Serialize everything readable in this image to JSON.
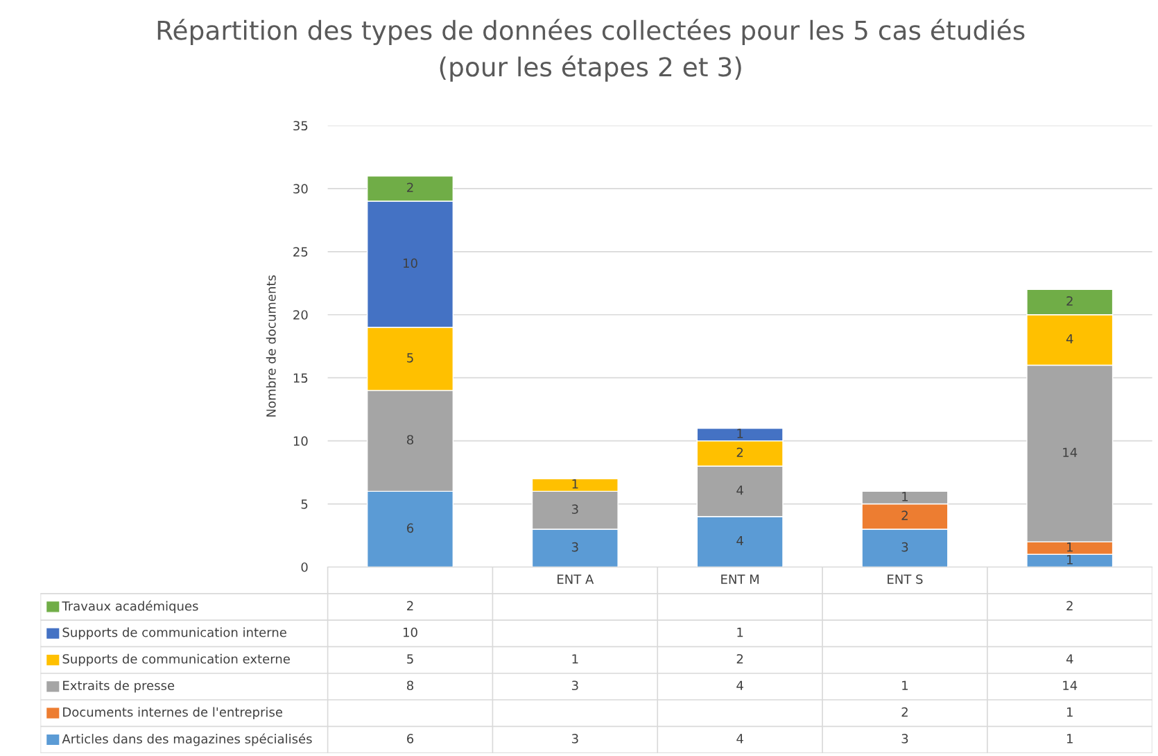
{
  "chart_data": [
    {
      "type": "bar",
      "stacked": true,
      "title": "Répartition des types de données collectées pour les 5 cas étudiés\n(pour les étapes 2 et 3)",
      "ylabel": "Nombre de documents",
      "categories": [
        null,
        "ENT A",
        "ENT M",
        "ENT S",
        null
      ],
      "ylim": [
        0,
        35
      ],
      "yticks": [
        0,
        5,
        10,
        15,
        20,
        25,
        30,
        35
      ],
      "grid": "y",
      "legend": "bottom",
      "data_labels": true,
      "series": [
        {
          "name": "Articles dans des magazines spécialisés",
          "color": "#5b9bd5",
          "values": [
            6,
            3,
            4,
            3,
            1
          ]
        },
        {
          "name": "Documents internes de l'entreprise",
          "color": "#ed7d31",
          "values": [
            null,
            null,
            null,
            2,
            1
          ]
        },
        {
          "name": "Extraits de presse",
          "color": "#a5a5a5",
          "values": [
            8,
            3,
            4,
            1,
            14
          ]
        },
        {
          "name": "Supports de communication externe",
          "color": "#ffc000",
          "values": [
            5,
            1,
            2,
            null,
            4
          ]
        },
        {
          "name": "Supports de communication interne",
          "color": "#4472c4",
          "values": [
            10,
            null,
            1,
            null,
            null
          ]
        },
        {
          "name": "Travaux académiques",
          "color": "#70ad47",
          "values": [
            2,
            null,
            null,
            null,
            2
          ]
        }
      ]
    },
    {
      "type": "other",
      "cell_labels": [
        [
          "2",
          null,
          null,
          null,
          "2"
        ],
        [
          "10",
          null,
          "1",
          null,
          null
        ],
        [
          "5",
          "1",
          "2",
          null,
          "4"
        ],
        [
          "8",
          "3",
          "4",
          "1",
          "14"
        ],
        [
          null,
          null,
          null,
          "2",
          "1"
        ],
        [
          "6",
          "3",
          "4",
          "3",
          "1"
        ]
      ]
    }
  ]
}
